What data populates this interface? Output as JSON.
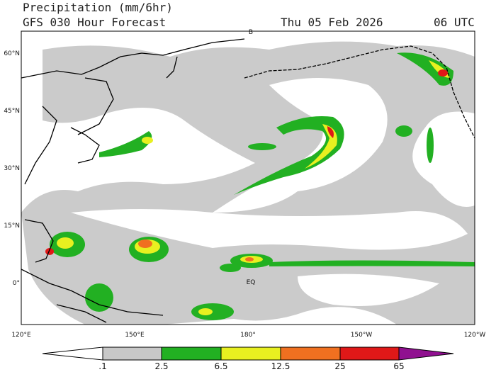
{
  "header": {
    "title": "Precipitation (mm/6hr)",
    "model": "GFS 030 Hour Forecast",
    "date": "Thu 05 Feb 2026",
    "time": "06 UTC"
  },
  "map": {
    "lat_labels": [
      "60°N",
      "45°N",
      "30°N",
      "15°N",
      "0°"
    ],
    "lon_labels": [
      "120°E",
      "150°E",
      "180°",
      "150°W",
      "120°W"
    ],
    "equator_label": "EQ",
    "top_label": "B"
  },
  "colorbar": {
    "labels": [
      ".1",
      "2.5",
      "6.5",
      "12.5",
      "25",
      "65"
    ]
  }
}
